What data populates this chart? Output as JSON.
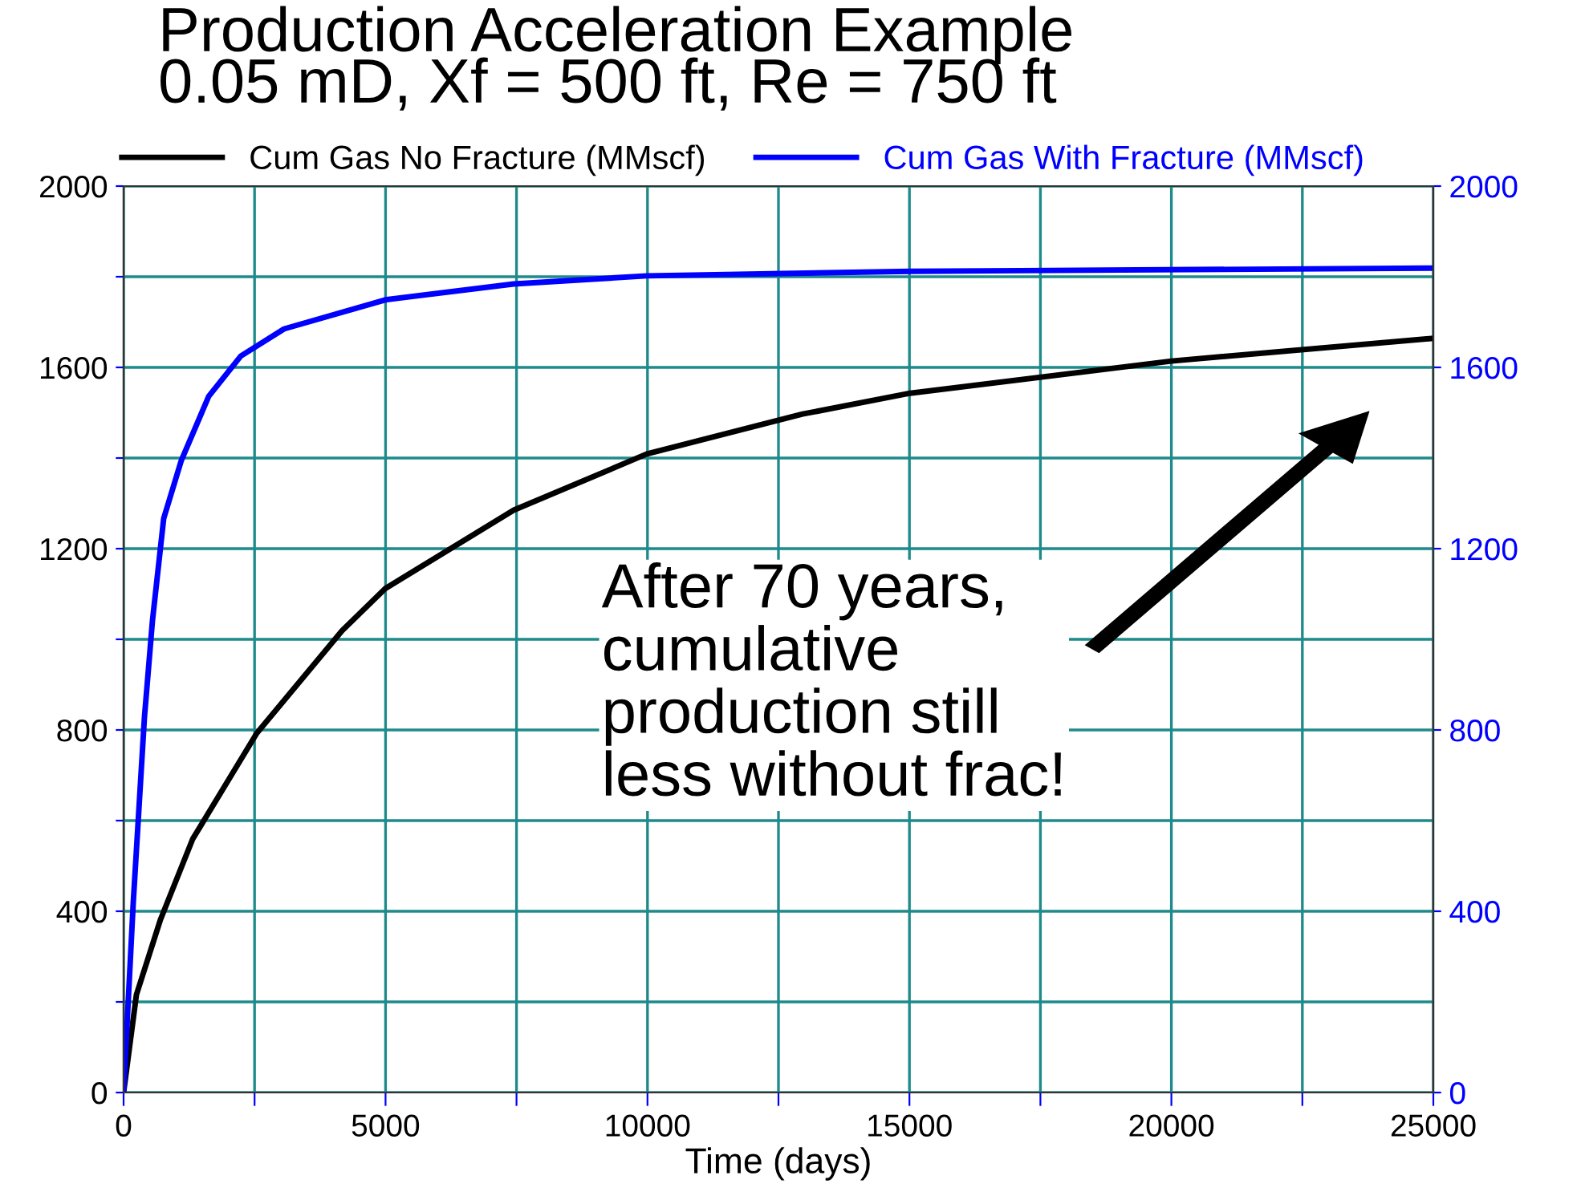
{
  "chart_data": {
    "type": "line",
    "title": "Production Acceleration Example\n0.05 mD, Xf = 500 ft, Re = 750 ft",
    "xlabel": "Time (days)",
    "xlim": [
      0,
      25000
    ],
    "xticks": [
      0,
      {
        "value": 2500,
        "label": null
      },
      5000,
      {
        "value": 7500,
        "label": null
      },
      10000,
      {
        "value": 12500,
        "label": null
      },
      15000,
      {
        "value": 17500,
        "label": null
      },
      20000,
      {
        "value": 22500,
        "label": null
      },
      25000
    ],
    "ylim": [
      0,
      2000
    ],
    "yticks": [
      0,
      {
        "value": 200,
        "label": null
      },
      400,
      {
        "value": 600,
        "label": null
      },
      800,
      {
        "value": 1000,
        "label": null
      },
      1200,
      {
        "value": 1400,
        "label": null
      },
      1600,
      {
        "value": 1800,
        "label": null
      },
      2000
    ],
    "y2lim": [
      0,
      2000
    ],
    "y2ticks": [
      0,
      400,
      800,
      1200,
      1600,
      2000
    ],
    "grid": true,
    "legend": "top",
    "series": [
      {
        "name": "Cum Gas No Fracture (MMscf)",
        "color": "#000000",
        "x": [
          0,
          245,
          705,
          1317,
          2543,
          4170,
          4994,
          7445,
          9988,
          12960,
          15012,
          20000,
          25000
        ],
        "values": [
          0,
          216,
          382,
          559,
          793,
          1019,
          1112,
          1285,
          1409,
          1497,
          1543,
          1614,
          1664
        ]
      },
      {
        "name": "Cum Gas With Fracture (MMscf)",
        "color": "#0000ff",
        "axis": "y2",
        "x": [
          0,
          184,
          398,
          551,
          766,
          1103,
          1624,
          2237,
          3064,
          4994,
          7445,
          9988,
          15012,
          25000
        ],
        "values": [
          0,
          418,
          828,
          1041,
          1267,
          1395,
          1536,
          1625,
          1685,
          1749,
          1784,
          1802,
          1812,
          1819
        ]
      }
    ],
    "annotations": [
      "After 70 years,\ncumulative\nproduction still\nless without frac!"
    ]
  }
}
